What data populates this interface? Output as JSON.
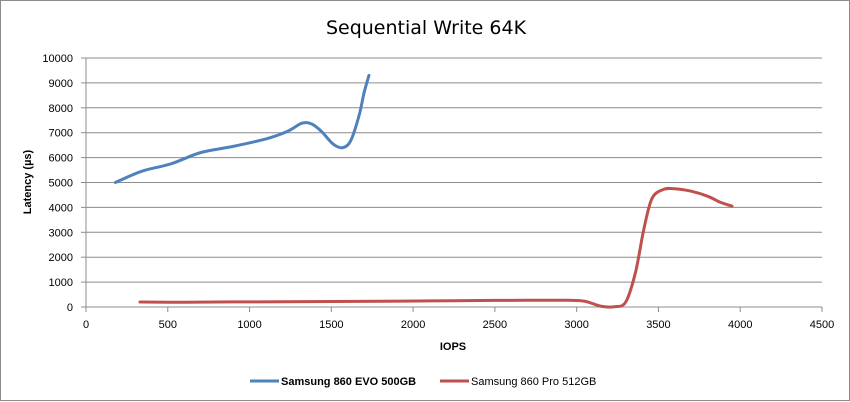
{
  "chart_data": {
    "type": "line",
    "title": "Sequential Write 64K",
    "xlabel": "IOPS",
    "ylabel": "Latency (µs)",
    "xlim": [
      0,
      4500
    ],
    "ylim": [
      0,
      10000
    ],
    "x_ticks": [
      0,
      500,
      1000,
      1500,
      2000,
      2500,
      3000,
      3500,
      4000,
      4500
    ],
    "y_ticks": [
      0,
      1000,
      2000,
      3000,
      4000,
      5000,
      6000,
      7000,
      8000,
      9000,
      10000
    ],
    "grid": "horizontal",
    "legend_position": "bottom",
    "series": [
      {
        "name": "Samsung 860 EVO 500GB",
        "color": "#4f81bd",
        "points": [
          [
            180,
            5000
          ],
          [
            340,
            5450
          ],
          [
            520,
            5750
          ],
          [
            700,
            6200
          ],
          [
            900,
            6450
          ],
          [
            1100,
            6750
          ],
          [
            1230,
            7050
          ],
          [
            1320,
            7380
          ],
          [
            1380,
            7350
          ],
          [
            1440,
            7050
          ],
          [
            1510,
            6550
          ],
          [
            1570,
            6400
          ],
          [
            1620,
            6700
          ],
          [
            1670,
            7700
          ],
          [
            1700,
            8600
          ],
          [
            1730,
            9300
          ]
        ]
      },
      {
        "name": "Samsung 860 Pro 512GB",
        "color": "#c0504d",
        "points": [
          [
            330,
            200
          ],
          [
            600,
            190
          ],
          [
            900,
            205
          ],
          [
            1200,
            210
          ],
          [
            1500,
            220
          ],
          [
            1800,
            230
          ],
          [
            2100,
            245
          ],
          [
            2400,
            260
          ],
          [
            2700,
            270
          ],
          [
            2950,
            270
          ],
          [
            3050,
            230
          ],
          [
            3150,
            30
          ],
          [
            3230,
            10
          ],
          [
            3300,
            200
          ],
          [
            3360,
            1400
          ],
          [
            3410,
            3100
          ],
          [
            3460,
            4350
          ],
          [
            3530,
            4720
          ],
          [
            3600,
            4750
          ],
          [
            3700,
            4650
          ],
          [
            3800,
            4450
          ],
          [
            3880,
            4200
          ],
          [
            3950,
            4050
          ]
        ]
      }
    ]
  }
}
